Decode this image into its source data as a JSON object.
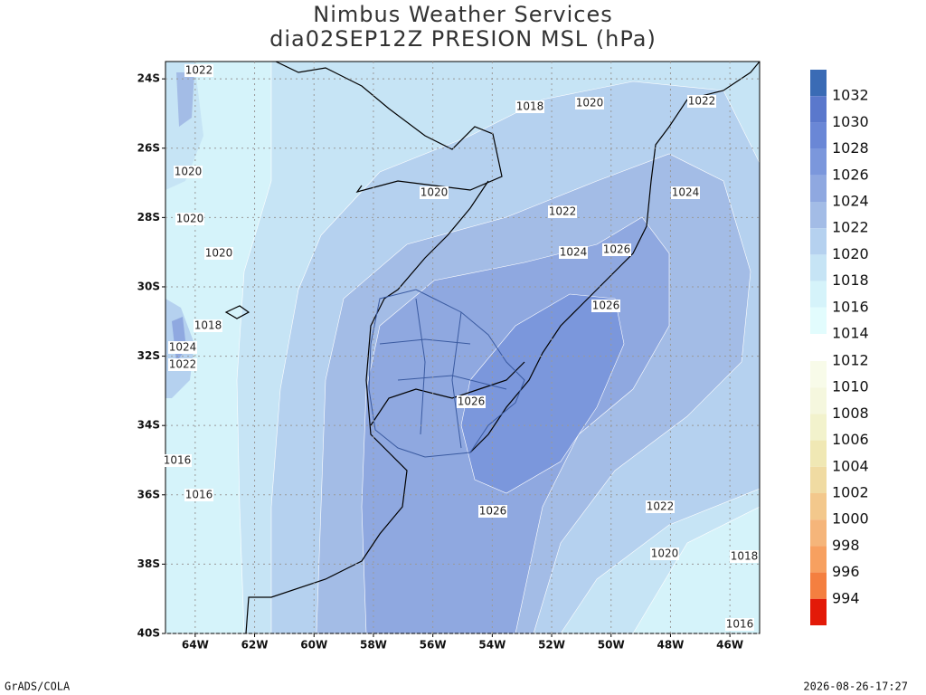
{
  "header": {
    "title": "Nimbus Weather Services",
    "subtitle": "dia02SEP12Z PRESION MSL (hPa)"
  },
  "map": {
    "xlim": [
      -65,
      -45
    ],
    "ylim": [
      -40,
      -23.5
    ],
    "xticks": [
      {
        "value": -64,
        "label": "64W"
      },
      {
        "value": -62,
        "label": "62W"
      },
      {
        "value": -60,
        "label": "60W"
      },
      {
        "value": -58,
        "label": "58W"
      },
      {
        "value": -56,
        "label": "56W"
      },
      {
        "value": -54,
        "label": "54W"
      },
      {
        "value": -52,
        "label": "52W"
      },
      {
        "value": -50,
        "label": "50W"
      },
      {
        "value": -48,
        "label": "48W"
      },
      {
        "value": -46,
        "label": "46W"
      }
    ],
    "yticks": [
      {
        "value": -24,
        "label": "24S"
      },
      {
        "value": -26,
        "label": "26S"
      },
      {
        "value": -28,
        "label": "28S"
      },
      {
        "value": -30,
        "label": "30S"
      },
      {
        "value": -32,
        "label": "32S"
      },
      {
        "value": -34,
        "label": "34S"
      },
      {
        "value": -36,
        "label": "36S"
      },
      {
        "value": -38,
        "label": "38S"
      },
      {
        "value": -40,
        "label": "40S"
      }
    ],
    "grid": true,
    "contour_labels": [
      1022,
      1020,
      1020,
      1020,
      1018,
      1024,
      1022,
      1016,
      1016,
      1018,
      1020,
      1022,
      1020,
      1022,
      1024,
      1024,
      1026,
      1026,
      1026,
      1026,
      1022,
      1020,
      1018,
      1016
    ]
  },
  "colorbar": {
    "upper": {
      "levels": [
        1032,
        1030,
        1028,
        1026,
        1024,
        1022,
        1020,
        1018,
        1016,
        1014
      ],
      "colors": [
        "#3a6bb5",
        "#5a78cc",
        "#6a87d6",
        "#7b97dc",
        "#8fa8e0",
        "#a3bce6",
        "#b5d1ef",
        "#c6e4f5",
        "#d5f3fa",
        "#e2fcfd"
      ]
    },
    "lower": {
      "levels": [
        1012,
        1010,
        1008,
        1006,
        1004,
        1002,
        1000,
        998,
        996,
        994
      ],
      "colors": [
        "#f8fbe9",
        "#f5f7de",
        "#f2f2cc",
        "#f0e8b4",
        "#f0dba2",
        "#f3c88c",
        "#f5b57a",
        "#f7a060",
        "#f47f40",
        "#e31a08"
      ]
    }
  },
  "footer": {
    "left": "GrADS/COLA",
    "right": "2026-08-26-17:27"
  }
}
